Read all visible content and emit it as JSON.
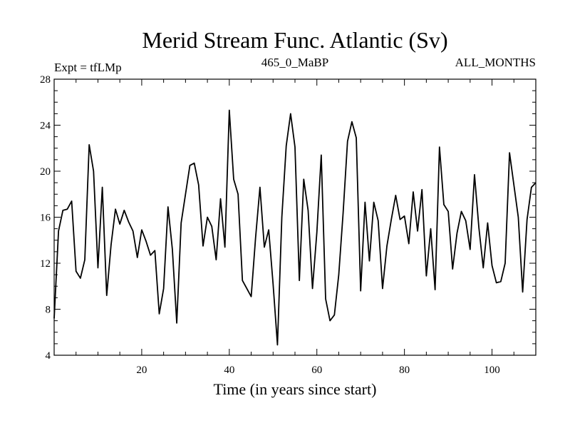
{
  "chart_data": {
    "type": "line",
    "title": "Merid Stream Func. Atlantic (Sv)",
    "subtitle_left": "Expt = tfLMp",
    "subtitle_center": "465_0_MaBP",
    "subtitle_right": "ALL_MONTHS",
    "xlabel": "Time (in years since start)",
    "ylabel": "",
    "xlim": [
      0,
      110
    ],
    "ylim": [
      4,
      28
    ],
    "xticks": [
      20,
      40,
      60,
      80,
      100
    ],
    "yticks": [
      4,
      8,
      12,
      16,
      20,
      24,
      28
    ],
    "line_color": "#000000",
    "series": [
      {
        "name": "Merid Stream Func. Atlantic",
        "x": [
          0,
          1,
          2,
          3,
          4,
          5,
          6,
          7,
          8,
          9,
          10,
          11,
          12,
          13,
          14,
          15,
          16,
          17,
          18,
          19,
          20,
          21,
          22,
          23,
          24,
          25,
          26,
          27,
          28,
          29,
          30,
          31,
          32,
          33,
          34,
          35,
          36,
          37,
          38,
          39,
          40,
          41,
          42,
          43,
          44,
          45,
          46,
          47,
          48,
          49,
          50,
          51,
          52,
          53,
          54,
          55,
          56,
          57,
          58,
          59,
          60,
          61,
          62,
          63,
          64,
          65,
          66,
          67,
          68,
          69,
          70,
          71,
          72,
          73,
          74,
          75,
          76,
          77,
          78,
          79,
          80,
          81,
          82,
          83,
          84,
          85,
          86,
          87,
          88,
          89,
          90,
          91,
          92,
          93,
          94,
          95,
          96,
          97,
          98,
          99,
          100,
          101,
          102,
          103,
          104,
          105,
          106,
          107,
          108,
          109,
          110
        ],
        "values": [
          7.2,
          14.8,
          16.6,
          16.7,
          17.4,
          11.3,
          10.7,
          12.3,
          22.3,
          20.0,
          11.6,
          18.6,
          9.2,
          13.6,
          16.7,
          15.4,
          16.6,
          15.6,
          14.8,
          12.5,
          14.9,
          13.9,
          12.7,
          13.1,
          7.6,
          9.8,
          16.9,
          13.2,
          6.8,
          15.5,
          18.0,
          20.5,
          20.7,
          18.8,
          13.5,
          16.0,
          15.2,
          12.3,
          17.6,
          13.4,
          25.3,
          19.3,
          18.0,
          10.5,
          9.8,
          9.1,
          14.2,
          18.6,
          13.4,
          14.9,
          10.2,
          4.9,
          16.0,
          22.2,
          25.0,
          22.1,
          10.5,
          19.3,
          16.6,
          9.8,
          14.7,
          21.4,
          8.9,
          7.0,
          7.5,
          11.0,
          16.4,
          22.6,
          24.3,
          22.9,
          9.6,
          17.3,
          12.2,
          17.3,
          15.7,
          9.8,
          13.5,
          15.8,
          17.9,
          15.8,
          16.1,
          13.7,
          18.2,
          14.8,
          18.4,
          10.9,
          15.0,
          9.7,
          22.1,
          17.1,
          16.5,
          11.5,
          14.6,
          16.5,
          15.7,
          13.2,
          19.7,
          15.1,
          11.6,
          15.5,
          11.8,
          10.3,
          10.4,
          12.0,
          21.6,
          18.8,
          16.0,
          9.5,
          15.8,
          18.6,
          19.0
        ]
      }
    ]
  }
}
